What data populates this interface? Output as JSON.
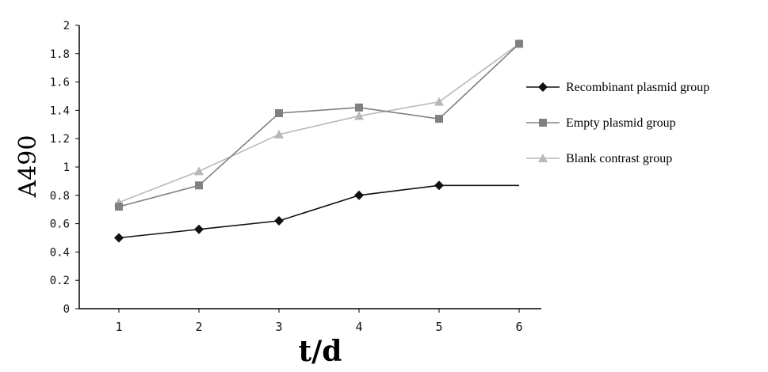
{
  "chart_data": {
    "type": "line",
    "xlabel": "t/d",
    "ylabel": "A490",
    "categories": [
      "1",
      "2",
      "3",
      "4",
      "5",
      "6"
    ],
    "ylim": [
      0,
      2
    ],
    "yticks": [
      "0",
      "0.2",
      "0.4",
      "0.6",
      "0.8",
      "1",
      "1.2",
      "1.4",
      "1.6",
      "1.8",
      "2"
    ],
    "grid": false,
    "legend_position": "right",
    "series": [
      {
        "name": "Recombinant plasmid group",
        "marker": "diamond",
        "color": "#111111",
        "values": [
          0.5,
          0.56,
          0.62,
          0.8,
          0.87,
          0.87
        ],
        "markers_shown": [
          true,
          true,
          true,
          true,
          true,
          false
        ]
      },
      {
        "name": "Empty plasmid group",
        "marker": "square",
        "color": "#808080",
        "values": [
          0.72,
          0.87,
          1.38,
          1.42,
          1.34,
          1.87
        ],
        "markers_shown": [
          true,
          true,
          true,
          true,
          true,
          true
        ]
      },
      {
        "name": "Blank contrast group",
        "marker": "triangle",
        "color": "#b8b8b8",
        "values": [
          0.75,
          0.97,
          1.23,
          1.36,
          1.46,
          1.87
        ],
        "markers_shown": [
          true,
          true,
          true,
          true,
          true,
          true
        ]
      }
    ]
  }
}
